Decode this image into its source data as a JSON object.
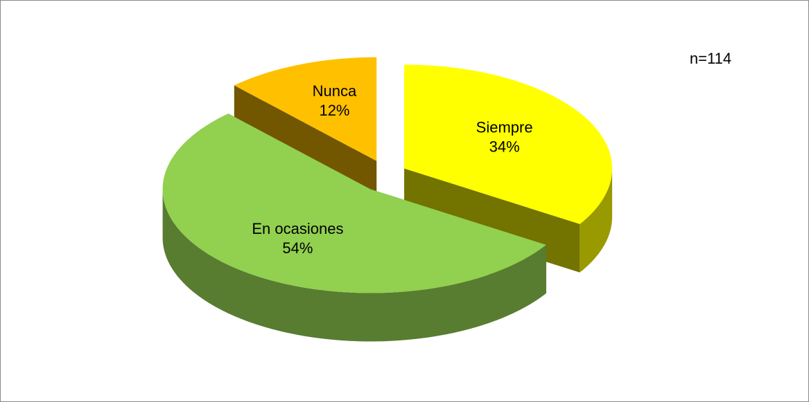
{
  "chart_data": {
    "type": "pie3d",
    "categories": [
      "Siempre",
      "En ocasiones",
      "Nunca"
    ],
    "values": [
      34,
      54,
      12
    ],
    "value_labels": [
      "34%",
      "54%",
      "12%"
    ],
    "colors": [
      "#ffff00",
      "#92d050",
      "#ffc000"
    ],
    "annotation": "n=114"
  }
}
